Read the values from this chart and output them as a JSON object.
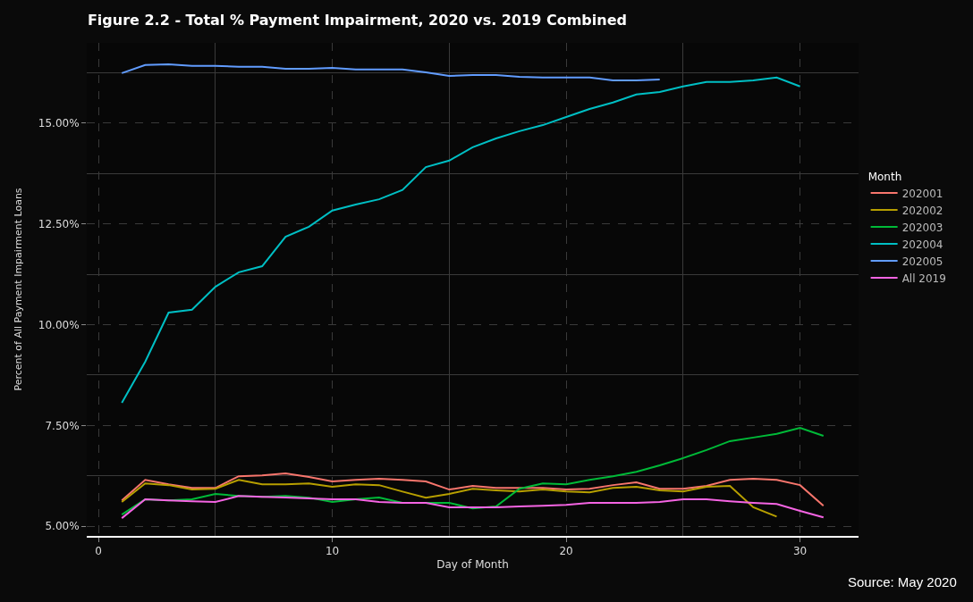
{
  "chart_data": {
    "type": "line",
    "title": "Figure 2.2 - Total % Payment Impairment, 2020 vs. 2019 Combined",
    "xlabel": "Day of Month",
    "ylabel": "Percent of All Payment Impairment Loans",
    "legend_title": "Month",
    "legend": "right",
    "grid": true,
    "xlim": [
      -0.5,
      32.5
    ],
    "xticks": [
      0,
      10,
      20,
      30
    ],
    "ylim": [
      4.76,
      16.99
    ],
    "yticks": [
      {
        "value": 5,
        "label": "5.00%"
      },
      {
        "value": 7.5,
        "label": "7.50%"
      },
      {
        "value": 10,
        "label": "10.00%"
      },
      {
        "value": 12.5,
        "label": "12.50%"
      },
      {
        "value": 15,
        "label": "15.00%"
      }
    ],
    "x": [
      1,
      2,
      3,
      4,
      5,
      6,
      7,
      8,
      9,
      10,
      11,
      12,
      13,
      14,
      15,
      16,
      17,
      18,
      19,
      20,
      21,
      22,
      23,
      24,
      25,
      26,
      27,
      28,
      29,
      30,
      31
    ],
    "series": [
      {
        "name": "202001",
        "color": "#f8766d",
        "values": [
          5.64,
          6.15,
          6.04,
          5.95,
          5.95,
          6.24,
          6.26,
          6.31,
          6.22,
          6.11,
          6.15,
          6.18,
          6.15,
          6.11,
          5.91,
          6.0,
          5.95,
          5.95,
          5.95,
          5.91,
          5.93,
          6.02,
          6.09,
          5.93,
          5.93,
          6.0,
          6.15,
          6.18,
          6.15,
          6.02,
          5.51
        ]
      },
      {
        "name": "202002",
        "color": "#b79f00",
        "values": [
          5.6,
          6.06,
          6.02,
          5.91,
          5.93,
          6.15,
          6.04,
          6.04,
          6.06,
          5.98,
          6.04,
          6.02,
          5.86,
          5.71,
          5.8,
          5.93,
          5.89,
          5.86,
          5.91,
          5.86,
          5.84,
          5.95,
          5.98,
          5.89,
          5.86,
          5.98,
          6.0,
          5.47,
          5.24,
          null,
          null
        ]
      },
      {
        "name": "202003",
        "color": "#00ba38",
        "values": [
          5.29,
          5.67,
          5.64,
          5.67,
          5.8,
          5.75,
          5.73,
          5.75,
          5.71,
          5.6,
          5.67,
          5.71,
          5.58,
          5.58,
          5.58,
          5.44,
          5.49,
          5.93,
          6.06,
          6.04,
          6.15,
          6.24,
          6.35,
          6.51,
          6.69,
          6.89,
          7.11,
          7.2,
          7.29,
          7.44,
          7.24
        ]
      },
      {
        "name": "202004",
        "color": "#00bfc4",
        "values": [
          8.06,
          9.08,
          10.3,
          10.37,
          10.94,
          11.3,
          11.45,
          12.18,
          12.43,
          12.83,
          12.98,
          13.11,
          13.34,
          13.91,
          14.07,
          14.4,
          14.62,
          14.8,
          14.95,
          15.15,
          15.35,
          15.51,
          15.71,
          15.77,
          15.91,
          16.02,
          16.02,
          16.06,
          16.13,
          15.91,
          null
        ]
      },
      {
        "name": "202005",
        "color": "#619cff",
        "values": [
          16.24,
          16.44,
          16.46,
          16.42,
          16.42,
          16.4,
          16.4,
          16.35,
          16.35,
          16.37,
          16.33,
          16.33,
          16.33,
          16.26,
          16.17,
          16.19,
          16.19,
          16.15,
          16.13,
          16.13,
          16.13,
          16.06,
          16.06,
          16.08,
          null,
          null,
          null,
          null,
          null,
          null,
          null
        ]
      },
      {
        "name": "All 2019",
        "color": "#f564e3",
        "values": [
          5.2,
          5.67,
          5.64,
          5.62,
          5.6,
          5.75,
          5.73,
          5.71,
          5.69,
          5.67,
          5.67,
          5.6,
          5.58,
          5.58,
          5.47,
          5.47,
          5.47,
          5.49,
          5.51,
          5.53,
          5.58,
          5.58,
          5.58,
          5.6,
          5.67,
          5.67,
          5.62,
          5.58,
          5.55,
          5.38,
          5.22
        ]
      }
    ],
    "annotations": [
      "Source: May 2020"
    ]
  }
}
